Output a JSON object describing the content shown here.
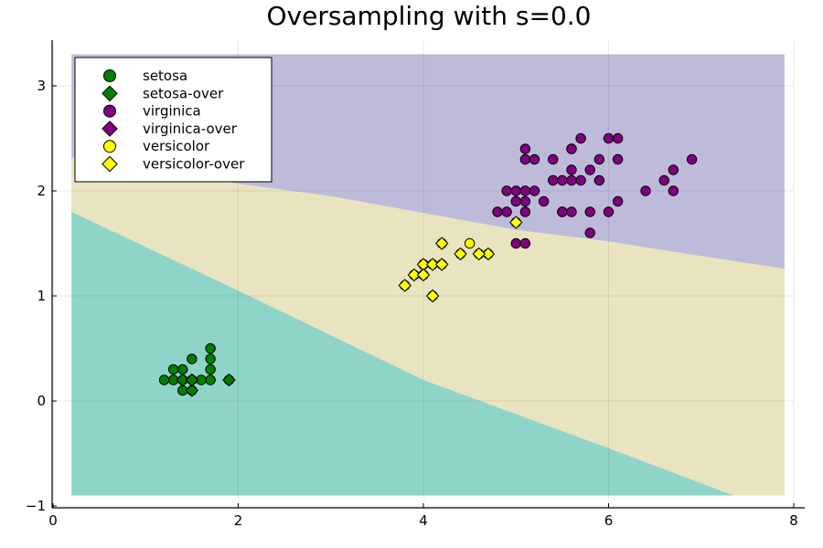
{
  "chart_data": {
    "type": "scatter",
    "title": "Oversampling with s=0.0",
    "xlabel": "",
    "ylabel": "",
    "xlim": [
      0,
      8
    ],
    "ylim": [
      -1,
      3.4
    ],
    "xticks": [
      "0",
      "2",
      "4",
      "6",
      "8"
    ],
    "yticks": [
      "−1",
      "0",
      "1",
      "2",
      "3"
    ],
    "grid": true,
    "legend_position": "top-left",
    "decision_regions": {
      "x_range": [
        0.2,
        7.9
      ],
      "y_range": [
        -0.9,
        3.3
      ],
      "colors": {
        "setosa": "#8fd4c8",
        "versicolor": "#e8e4bf",
        "virginica": "#bebada"
      },
      "boundary_setosa_versicolor": [
        [
          0.2,
          1.8
        ],
        [
          2.0,
          1.05
        ],
        [
          4.0,
          0.2
        ],
        [
          6.0,
          -0.45
        ],
        [
          7.35,
          -0.9
        ]
      ],
      "boundary_versicolor_virginica": [
        [
          0.2,
          2.32
        ],
        [
          1.0,
          2.2
        ],
        [
          2.0,
          2.07
        ],
        [
          3.0,
          1.95
        ],
        [
          4.0,
          1.79
        ],
        [
          5.0,
          1.63
        ],
        [
          6.0,
          1.52
        ],
        [
          7.0,
          1.38
        ],
        [
          7.9,
          1.26
        ]
      ]
    },
    "series": [
      {
        "name": "setosa",
        "marker": "circle",
        "color": "#008000",
        "points": [
          [
            1.4,
            0.2
          ],
          [
            1.3,
            0.2
          ],
          [
            1.5,
            0.2
          ],
          [
            1.7,
            0.4
          ],
          [
            1.4,
            0.3
          ],
          [
            1.5,
            0.1
          ],
          [
            1.6,
            0.2
          ],
          [
            1.2,
            0.2
          ],
          [
            1.3,
            0.3
          ],
          [
            1.5,
            0.4
          ],
          [
            1.7,
            0.3
          ],
          [
            1.7,
            0.5
          ],
          [
            1.9,
            0.2
          ],
          [
            1.7,
            0.2
          ],
          [
            1.4,
            0.1
          ]
        ]
      },
      {
        "name": "setosa-over",
        "marker": "diamond",
        "color": "#008000",
        "points": [
          [
            1.4,
            0.2
          ],
          [
            1.5,
            0.1
          ],
          [
            1.5,
            0.2
          ],
          [
            1.9,
            0.2
          ]
        ]
      },
      {
        "name": "virginica",
        "marker": "circle",
        "color": "#800080",
        "points": [
          [
            6.0,
            2.5
          ],
          [
            5.1,
            1.9
          ],
          [
            5.9,
            2.1
          ],
          [
            5.6,
            1.8
          ],
          [
            5.8,
            2.2
          ],
          [
            6.6,
            2.1
          ],
          [
            5.8,
            1.8
          ],
          [
            6.1,
            2.5
          ],
          [
            5.1,
            2.0
          ],
          [
            5.3,
            1.9
          ],
          [
            5.5,
            2.1
          ],
          [
            5.0,
            2.0
          ],
          [
            5.1,
            2.4
          ],
          [
            5.5,
            1.8
          ],
          [
            6.7,
            2.2
          ],
          [
            6.9,
            2.3
          ],
          [
            5.0,
            1.5
          ],
          [
            4.9,
            2.0
          ],
          [
            6.7,
            2.0
          ],
          [
            4.9,
            1.8
          ],
          [
            5.7,
            2.1
          ],
          [
            6.0,
            1.8
          ],
          [
            4.8,
            1.8
          ],
          [
            5.6,
            2.1
          ],
          [
            5.8,
            1.6
          ],
          [
            6.1,
            1.9
          ],
          [
            6.4,
            2.0
          ],
          [
            5.6,
            2.2
          ],
          [
            5.1,
            1.5
          ],
          [
            6.1,
            2.3
          ],
          [
            5.6,
            2.4
          ],
          [
            5.5,
            1.8
          ],
          [
            5.4,
            2.1
          ],
          [
            5.6,
            2.4
          ],
          [
            5.1,
            2.3
          ],
          [
            5.9,
            2.3
          ],
          [
            5.7,
            2.5
          ],
          [
            5.2,
            2.3
          ],
          [
            5.0,
            1.9
          ],
          [
            5.2,
            2.0
          ],
          [
            5.4,
            2.3
          ],
          [
            5.1,
            1.8
          ]
        ]
      },
      {
        "name": "virginica-over",
        "marker": "diamond",
        "color": "#800080",
        "points": []
      },
      {
        "name": "versicolor",
        "marker": "circle",
        "color": "#ffff00",
        "points": [
          [
            4.0,
            1.3
          ],
          [
            4.5,
            1.5
          ],
          [
            4.7,
            1.4
          ],
          [
            4.4,
            1.4
          ],
          [
            4.1,
            1.0
          ],
          [
            3.9,
            1.2
          ],
          [
            4.2,
            1.5
          ],
          [
            4.6,
            1.4
          ],
          [
            3.8,
            1.1
          ],
          [
            4.0,
            1.2
          ],
          [
            4.1,
            1.3
          ],
          [
            4.2,
            1.3
          ],
          [
            5.0,
            1.7
          ],
          [
            4.0,
            1.3
          ]
        ]
      },
      {
        "name": "versicolor-over",
        "marker": "diamond",
        "color": "#ffff00",
        "points": [
          [
            4.0,
            1.3
          ],
          [
            4.7,
            1.4
          ],
          [
            4.4,
            1.4
          ],
          [
            4.1,
            1.0
          ],
          [
            3.9,
            1.2
          ],
          [
            4.2,
            1.5
          ],
          [
            4.6,
            1.4
          ],
          [
            3.8,
            1.1
          ],
          [
            4.0,
            1.2
          ],
          [
            4.1,
            1.3
          ],
          [
            4.2,
            1.3
          ],
          [
            5.0,
            1.7
          ]
        ]
      }
    ]
  }
}
